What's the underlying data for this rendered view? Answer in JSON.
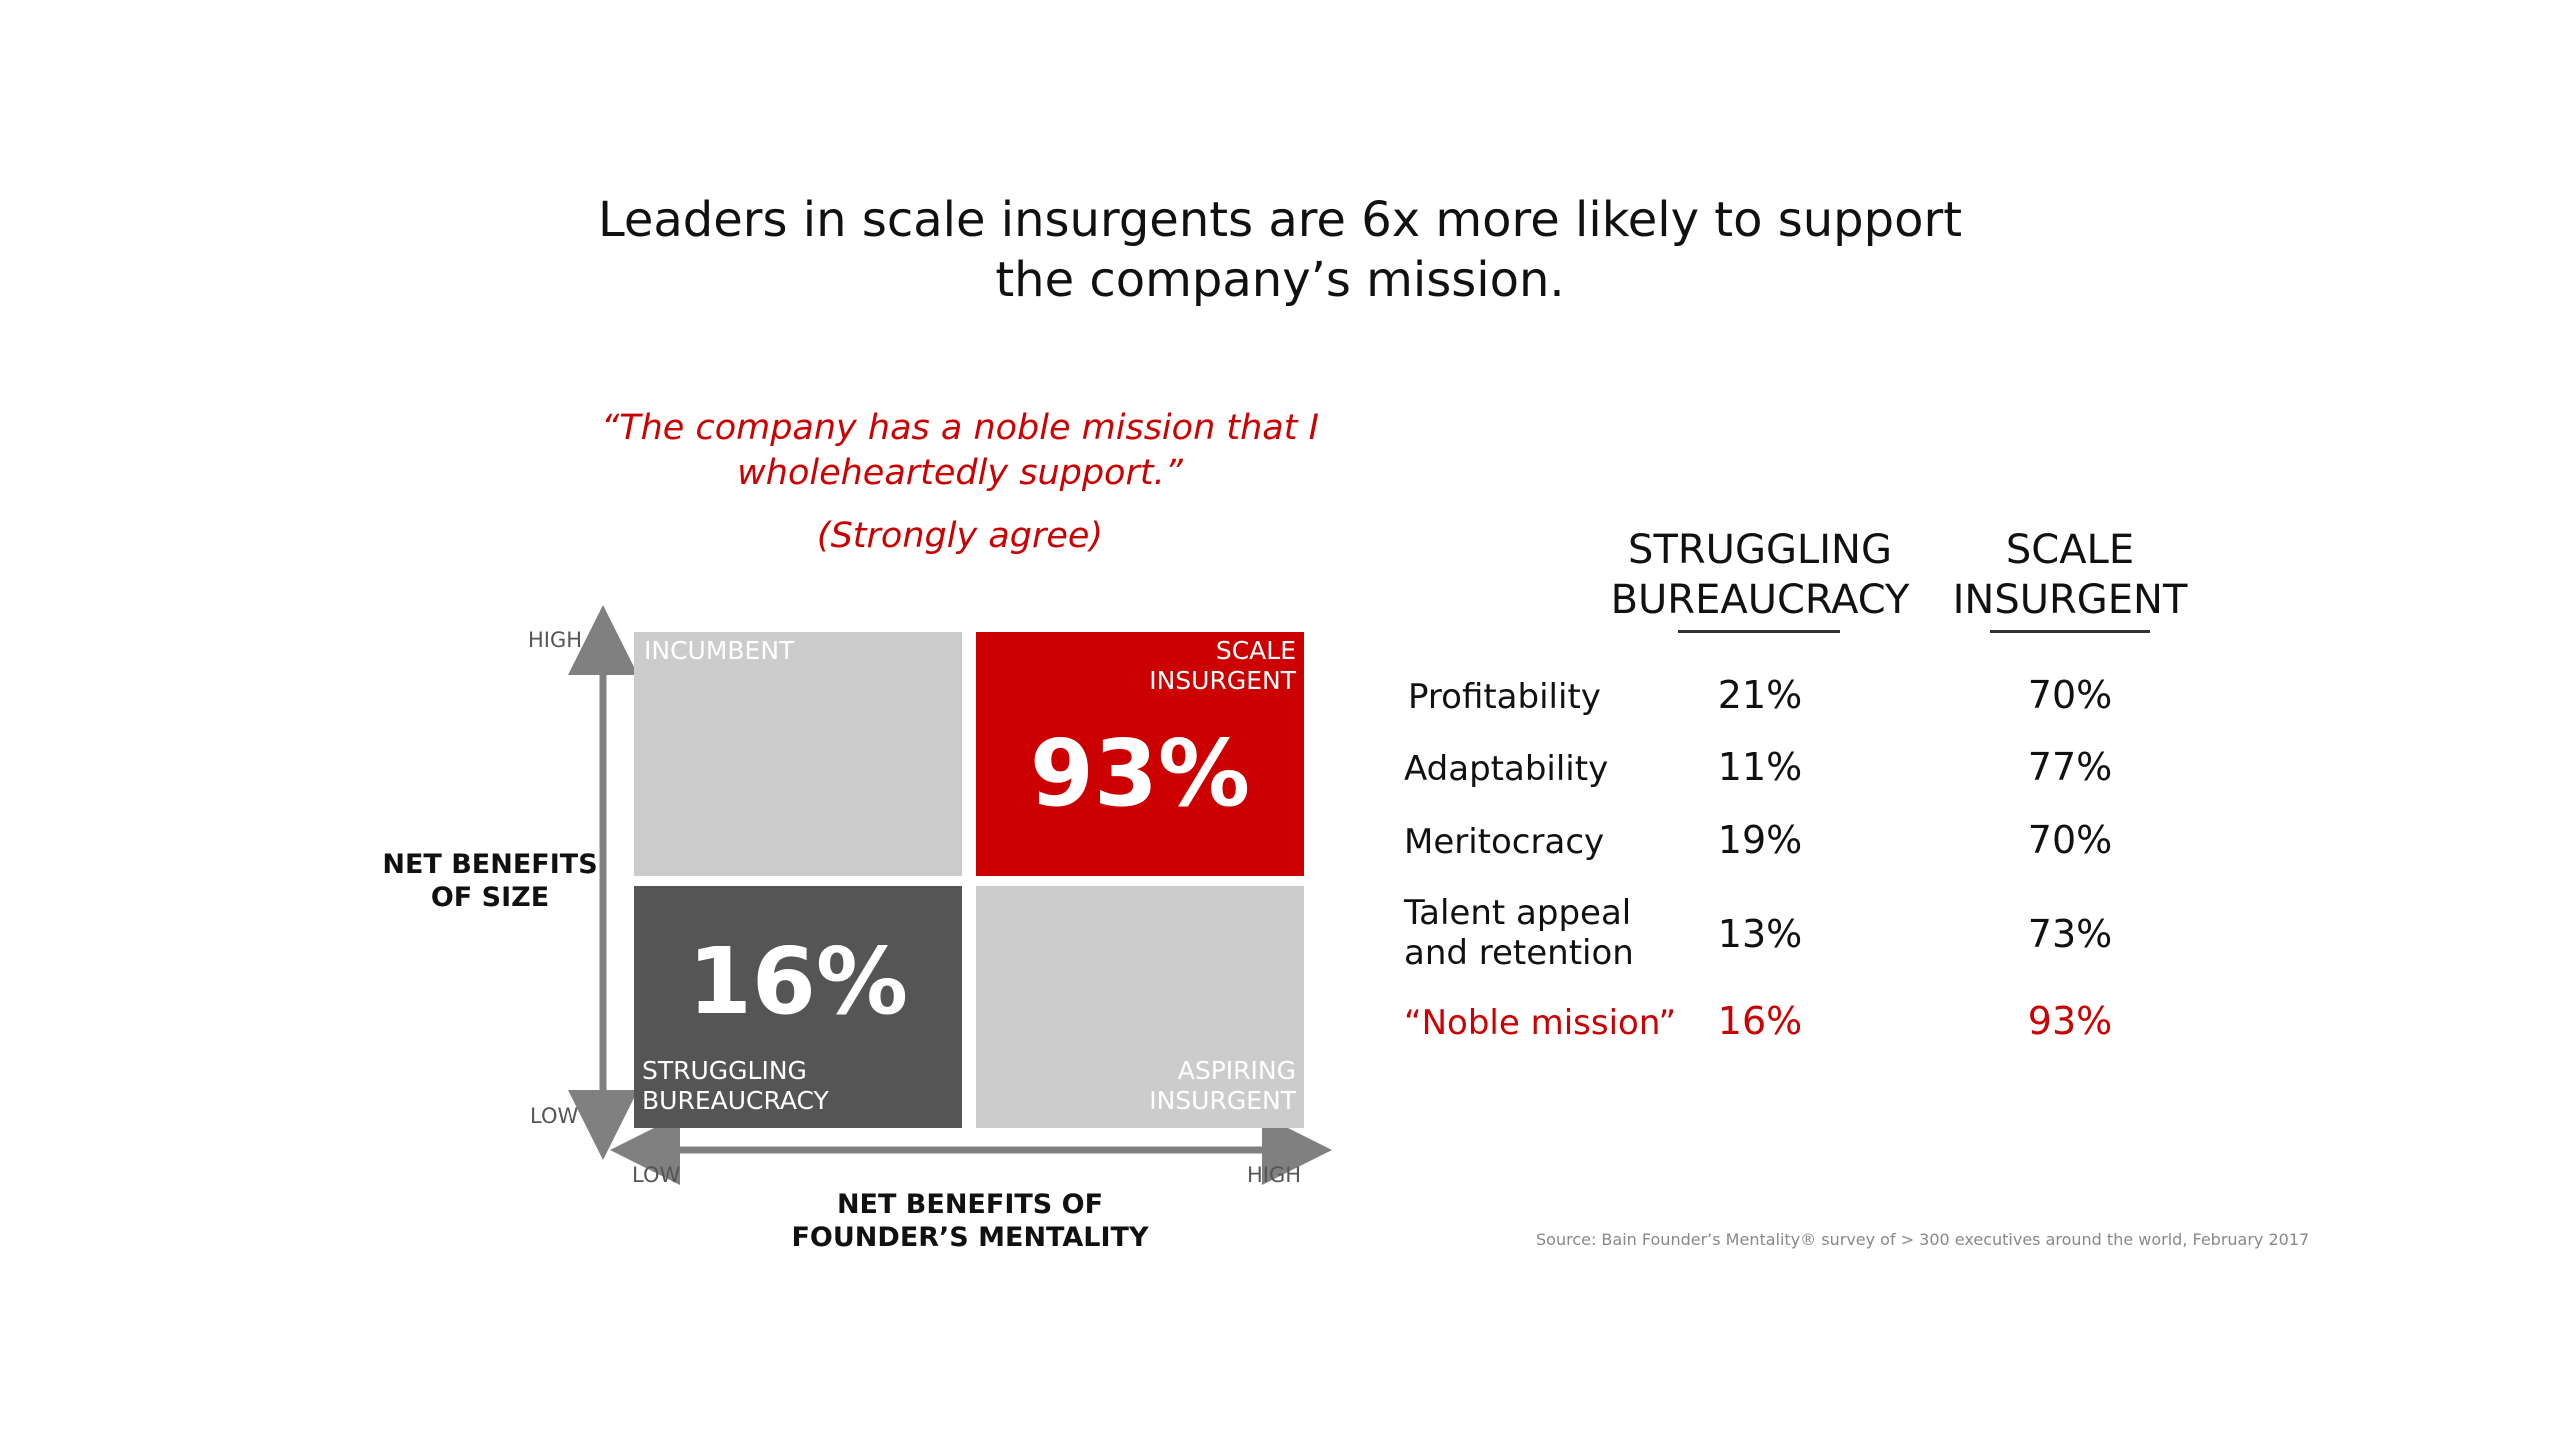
{
  "title_line1": "Leaders in scale insurgents are 6x more likely to support",
  "title_line2": "the company’s mission.",
  "quote_line1": "“The company has a noble mission that I",
  "quote_line2": "wholeheartedly support.”",
  "quote_sub": "(Strongly agree)",
  "colors": {
    "highlight": "#cc0000",
    "struggling": "#555555",
    "neutral": "#cccccc",
    "axis": "#808080"
  },
  "chart_data": {
    "type": "table",
    "matrix": {
      "y_axis": {
        "title_line1": "NET BENEFITS",
        "title_line2": "OF SIZE",
        "high": "HIGH",
        "low": "LOW"
      },
      "x_axis": {
        "title_line1": "NET BENEFITS OF",
        "title_line2": "FOUNDER’S MENTALITY",
        "low": "LOW",
        "high": "HIGH"
      },
      "quadrants": {
        "incumbent": {
          "label_line1": "INCUMBENT"
        },
        "scale_insurgent": {
          "label_line1": "SCALE",
          "label_line2": "INSURGENT",
          "value": "93%"
        },
        "struggling_bureaucracy": {
          "label_line1": "STRUGGLING",
          "label_line2": "BUREAUCRACY",
          "value": "16%"
        },
        "aspiring_insurgent": {
          "label_line1": "ASPIRING",
          "label_line2": "INSURGENT"
        }
      }
    },
    "table": {
      "columns": [
        {
          "line1": "STRUGGLING",
          "line2": "BUREAUCRACY"
        },
        {
          "line1": "SCALE",
          "line2": "INSURGENT"
        }
      ],
      "rows": [
        {
          "label": "Profitability",
          "values": [
            "21%",
            "70%"
          ]
        },
        {
          "label": "Adaptability",
          "values": [
            "11%",
            "77%"
          ]
        },
        {
          "label": "Meritocracy",
          "values": [
            "19%",
            "70%"
          ]
        },
        {
          "label_line1": "Talent appeal",
          "label_line2": "and retention",
          "values": [
            "13%",
            "73%"
          ]
        },
        {
          "label": "“Noble mission”",
          "values": [
            "16%",
            "93%"
          ],
          "highlight": true
        }
      ]
    }
  },
  "source": "Source: Bain Founder’s Mentality® survey of > 300 executives around the world, February 2017"
}
